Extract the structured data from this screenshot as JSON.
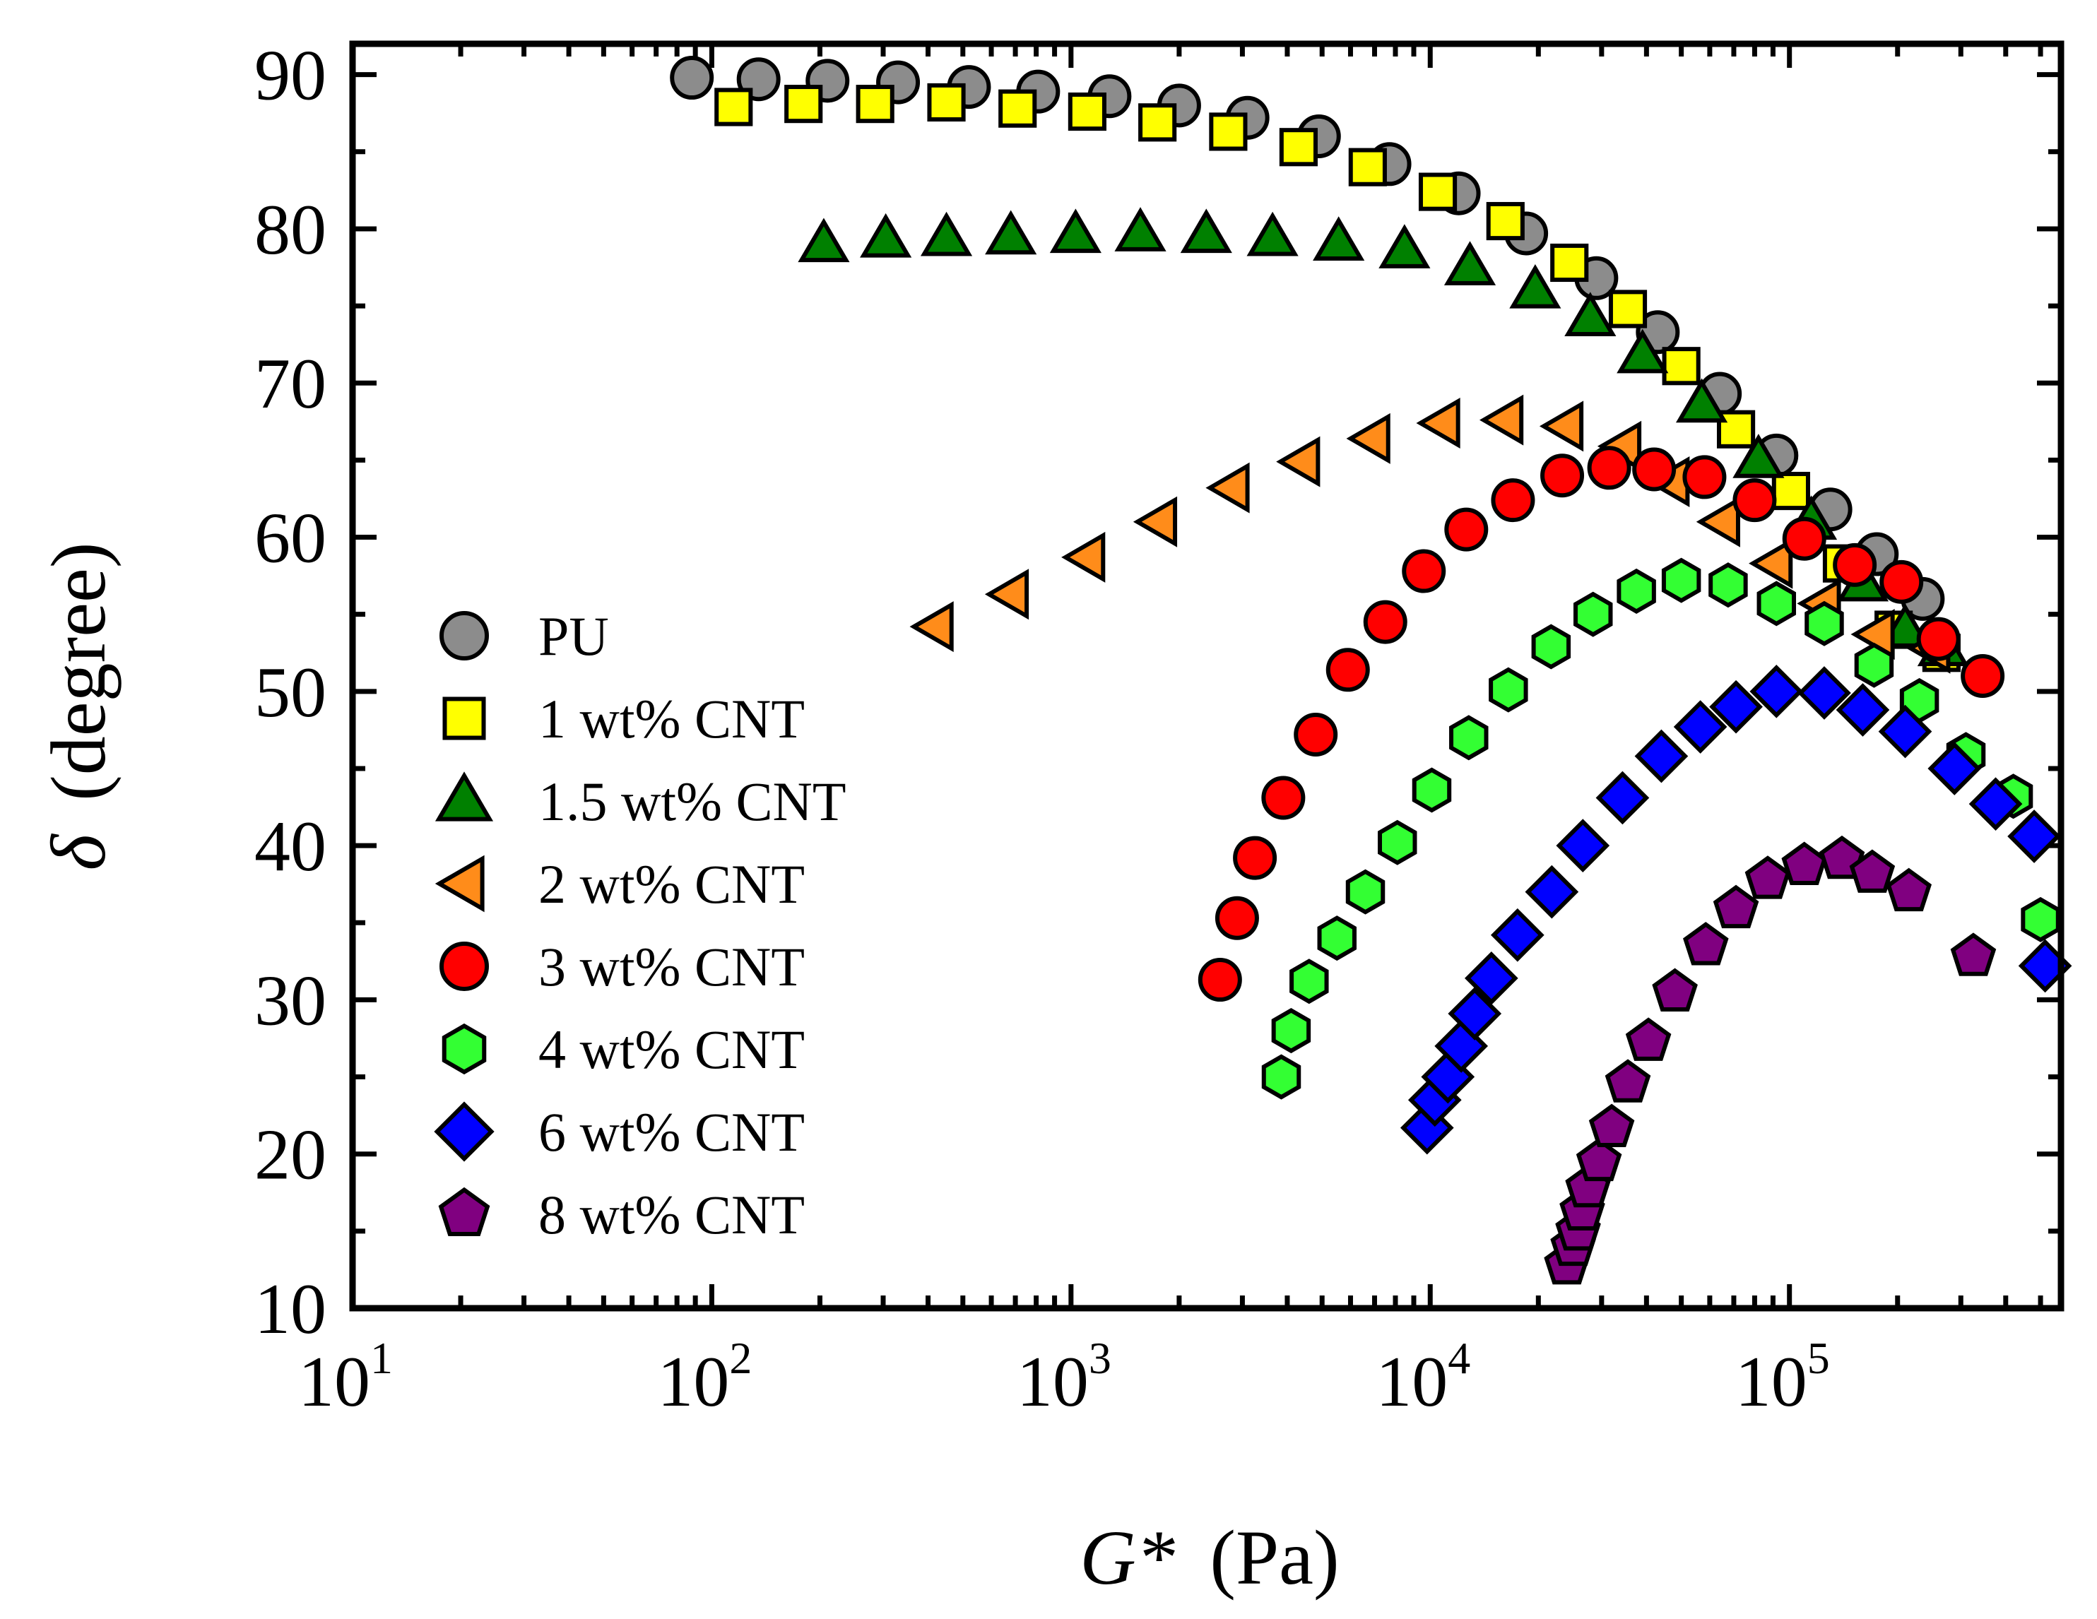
{
  "chart_data": {
    "type": "scatter",
    "title": "",
    "xlabel": {
      "symbol": "G*",
      "unit": "(Pa)"
    },
    "ylabel": {
      "symbol": "δ",
      "unit": "(degree)"
    },
    "xscale": "log",
    "xlim": [
      10,
      570000
    ],
    "ylim": [
      10,
      92
    ],
    "x_ticks": [
      {
        "base": "10",
        "exp": "1"
      },
      {
        "base": "10",
        "exp": "2"
      },
      {
        "base": "10",
        "exp": "3"
      },
      {
        "base": "10",
        "exp": "4"
      },
      {
        "base": "10",
        "exp": "5"
      }
    ],
    "y_ticks": [
      "10",
      "20",
      "30",
      "40",
      "50",
      "60",
      "70",
      "80",
      "90"
    ],
    "legend_position": "left-middle",
    "series": [
      {
        "name": "PU",
        "marker": "circle",
        "color": "#8c8c8c",
        "points": [
          [
            88,
            89.8
          ],
          [
            135,
            89.7
          ],
          [
            210,
            89.6
          ],
          [
            330,
            89.5
          ],
          [
            520,
            89.2
          ],
          [
            810,
            88.9
          ],
          [
            1280,
            88.6
          ],
          [
            2000,
            88
          ],
          [
            3100,
            87.2
          ],
          [
            4900,
            86
          ],
          [
            7700,
            84.2
          ],
          [
            12000,
            82.3
          ],
          [
            18500,
            79.7
          ],
          [
            29000,
            76.8
          ],
          [
            43000,
            73.3
          ],
          [
            64000,
            69.3
          ],
          [
            92000,
            65.3
          ],
          [
            130000,
            61.8
          ],
          [
            175000,
            58.9
          ],
          [
            235000,
            56
          ]
        ]
      },
      {
        "name": "1 wt% CNT",
        "marker": "square",
        "color": "#ffff00",
        "points": [
          [
            115,
            87.9
          ],
          [
            180,
            88.1
          ],
          [
            285,
            88.1
          ],
          [
            450,
            88.2
          ],
          [
            710,
            87.8
          ],
          [
            1110,
            87.6
          ],
          [
            1740,
            86.9
          ],
          [
            2740,
            86.3
          ],
          [
            4300,
            85.3
          ],
          [
            6700,
            84
          ],
          [
            10500,
            82.4
          ],
          [
            16200,
            80.5
          ],
          [
            24400,
            77.8
          ],
          [
            35500,
            74.8
          ],
          [
            50000,
            71.1
          ],
          [
            71000,
            67
          ],
          [
            101000,
            63
          ],
          [
            140000,
            58.3
          ],
          [
            195000,
            54
          ],
          [
            265000,
            52.5
          ]
        ]
      },
      {
        "name": "1.5 wt% CNT",
        "marker": "triangle-up",
        "color": "#008000",
        "points": [
          [
            205,
            79
          ],
          [
            305,
            79.3
          ],
          [
            450,
            79.4
          ],
          [
            680,
            79.5
          ],
          [
            1030,
            79.6
          ],
          [
            1560,
            79.7
          ],
          [
            2380,
            79.6
          ],
          [
            3640,
            79.4
          ],
          [
            5560,
            79.1
          ],
          [
            8480,
            78.6
          ],
          [
            12900,
            77.5
          ],
          [
            19600,
            76
          ],
          [
            27900,
            74.2
          ],
          [
            39000,
            71.8
          ],
          [
            57000,
            68.6
          ],
          [
            82000,
            65
          ],
          [
            115000,
            61
          ],
          [
            160000,
            57
          ],
          [
            210000,
            54
          ],
          [
            268000,
            52.8
          ]
        ]
      },
      {
        "name": "2 wt% CNT",
        "marker": "triangle-left",
        "color": "#ff8c1a",
        "points": [
          [
            420,
            54.2
          ],
          [
            680,
            56.3
          ],
          [
            1110,
            58.7
          ],
          [
            1760,
            61
          ],
          [
            2800,
            63.2
          ],
          [
            4400,
            64.9
          ],
          [
            6900,
            66.4
          ],
          [
            10800,
            67.4
          ],
          [
            16200,
            67.6
          ],
          [
            23800,
            67.2
          ],
          [
            34500,
            65.9
          ],
          [
            47000,
            63.6
          ],
          [
            65000,
            61
          ],
          [
            91000,
            58.3
          ],
          [
            124000,
            55.7
          ],
          [
            175000,
            53.7
          ],
          [
            250000,
            52.8
          ]
        ]
      },
      {
        "name": "3 wt% CNT",
        "marker": "circle",
        "color": "#ff0000",
        "points": [
          [
            2600,
            31.3
          ],
          [
            2900,
            35.3
          ],
          [
            3250,
            39.2
          ],
          [
            3900,
            43.1
          ],
          [
            4800,
            47.2
          ],
          [
            5900,
            51.4
          ],
          [
            7500,
            54.5
          ],
          [
            9600,
            57.8
          ],
          [
            12600,
            60.5
          ],
          [
            17000,
            62.4
          ],
          [
            23300,
            64
          ],
          [
            31500,
            64.5
          ],
          [
            42000,
            64.4
          ],
          [
            58000,
            63.9
          ],
          [
            80000,
            62.4
          ],
          [
            110000,
            59.9
          ],
          [
            152000,
            58.2
          ],
          [
            205000,
            57.1
          ],
          [
            260000,
            53.4
          ],
          [
            345000,
            51
          ]
        ]
      },
      {
        "name": "4 wt% CNT",
        "marker": "hexagon",
        "color": "#33ff33",
        "points": [
          [
            3850,
            25
          ],
          [
            4100,
            28
          ],
          [
            4600,
            31.2
          ],
          [
            5500,
            34
          ],
          [
            6600,
            37
          ],
          [
            8100,
            40.2
          ],
          [
            10100,
            43.6
          ],
          [
            12800,
            47
          ],
          [
            16500,
            50.1
          ],
          [
            21700,
            52.9
          ],
          [
            28400,
            55
          ],
          [
            37500,
            56.5
          ],
          [
            50000,
            57.2
          ],
          [
            67500,
            56.9
          ],
          [
            92000,
            55.7
          ],
          [
            125000,
            54.4
          ],
          [
            172000,
            51.7
          ],
          [
            230000,
            49.4
          ],
          [
            310000,
            45.9
          ],
          [
            420000,
            43.2
          ],
          [
            500000,
            35.2
          ]
        ]
      },
      {
        "name": "6 wt% CNT",
        "marker": "diamond",
        "color": "#0000ff",
        "points": [
          [
            9800,
            21.7
          ],
          [
            10300,
            23.5
          ],
          [
            11200,
            25
          ],
          [
            12200,
            27
          ],
          [
            13300,
            29.1
          ],
          [
            14800,
            31.4
          ],
          [
            17500,
            34.2
          ],
          [
            21800,
            37
          ],
          [
            26600,
            40
          ],
          [
            34300,
            43.1
          ],
          [
            44000,
            45.8
          ],
          [
            56500,
            47.7
          ],
          [
            71000,
            49
          ],
          [
            92000,
            50
          ],
          [
            125000,
            49.9
          ],
          [
            160000,
            48.8
          ],
          [
            210000,
            47.4
          ],
          [
            288000,
            45
          ],
          [
            375000,
            42.7
          ],
          [
            480000,
            40.6
          ],
          [
            515000,
            32.2
          ]
        ]
      },
      {
        "name": "8 wt% CNT",
        "marker": "pentagon",
        "color": "#800080",
        "points": [
          [
            24000,
            12.8
          ],
          [
            25000,
            14
          ],
          [
            25800,
            15
          ],
          [
            26500,
            16.3
          ],
          [
            27500,
            17.8
          ],
          [
            29500,
            19.5
          ],
          [
            32000,
            21.7
          ],
          [
            35500,
            24.6
          ],
          [
            40500,
            27.3
          ],
          [
            48000,
            30.5
          ],
          [
            58500,
            33.5
          ],
          [
            71000,
            35.9
          ],
          [
            87000,
            37.8
          ],
          [
            110000,
            38.7
          ],
          [
            140000,
            39.1
          ],
          [
            170000,
            38.2
          ],
          [
            215000,
            37
          ],
          [
            325000,
            32.8
          ]
        ]
      }
    ]
  }
}
